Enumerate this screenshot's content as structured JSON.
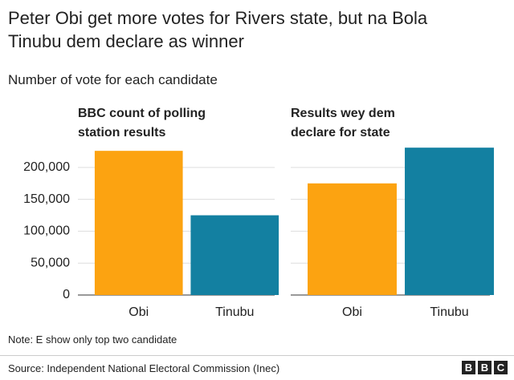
{
  "title": "Peter Obi get more votes for Rivers state, but na Bola Tinubu dem declare as winner",
  "subtitle": "Number of vote for each candidate",
  "note": "Note: E show only top two candidate",
  "source": "Source: Independent National Electoral Commission (Inec)",
  "logo": [
    "B",
    "B",
    "C"
  ],
  "chart_data": [
    {
      "type": "bar",
      "title": "BBC count of polling station results",
      "categories": [
        "Obi",
        "Tinubu"
      ],
      "values": [
        226000,
        125000
      ],
      "colors": [
        "#fca311",
        "#1380a1"
      ],
      "ylim": [
        0,
        235000
      ],
      "yticks": [
        0,
        {
          "value": 50000,
          "label": "50,000"
        },
        {
          "value": 100000,
          "label": "100,000"
        },
        {
          "value": 150000,
          "label": "150,000"
        },
        {
          "value": 200000,
          "label": "200,000"
        }
      ],
      "grid": true
    },
    {
      "type": "bar",
      "title": "Results wey dem declare for state",
      "categories": [
        "Obi",
        "Tinubu"
      ],
      "values": [
        175000,
        231000
      ],
      "colors": [
        "#fca311",
        "#1380a1"
      ],
      "ylim": [
        0,
        235000
      ],
      "grid": true
    }
  ]
}
